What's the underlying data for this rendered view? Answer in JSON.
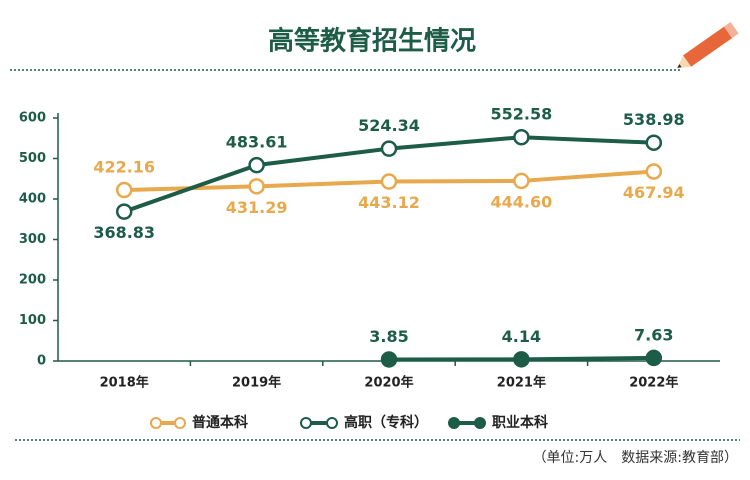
{
  "chart_data": {
    "type": "line",
    "title": "高等教育招生情况",
    "categories": [
      "2018年",
      "2019年",
      "2020年",
      "2021年",
      "2022年"
    ],
    "series": [
      {
        "name": "普通本科",
        "color": "#e8a84c",
        "marker": "open",
        "values": [
          422.16,
          431.29,
          443.12,
          444.6,
          467.94
        ],
        "value_labels": [
          "422.16",
          "431.29",
          "443.12",
          "444.60",
          "467.94"
        ]
      },
      {
        "name": "高职（专科）",
        "color": "#1d5c47",
        "marker": "open",
        "values": [
          368.83,
          483.61,
          524.34,
          552.58,
          538.98
        ]
      },
      {
        "name": "职业本科",
        "color": "#1d5c47",
        "marker": "filled",
        "values": [
          null,
          null,
          3.85,
          4.14,
          7.63
        ]
      }
    ],
    "ylim": [
      0,
      600
    ],
    "yticks": [
      0,
      100,
      200,
      300,
      400,
      500,
      600
    ],
    "grid": false,
    "source": "（单位:万人　数据来源:教育部）"
  }
}
